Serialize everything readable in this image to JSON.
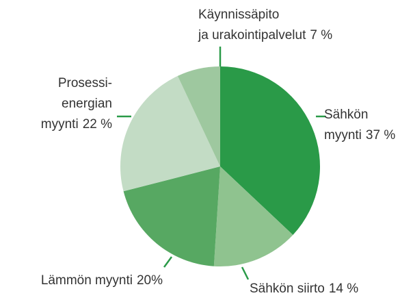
{
  "chart_data": {
    "type": "pie",
    "categories": [
      [
        "Sähkön",
        "myynti"
      ],
      [
        "Sähkön siirto"
      ],
      [
        "Lämmön myynti"
      ],
      [
        "Prosessi-",
        "energian",
        "myynti"
      ],
      [
        "Käynnissäpito",
        "ja urakointipalvelut"
      ]
    ],
    "values": [
      37,
      14,
      20,
      22,
      7
    ],
    "value_labels": [
      "37 %",
      "14 %",
      "20%",
      "22 %",
      "7 %"
    ],
    "colors": [
      "#2a9a48",
      "#8fc38f",
      "#57a862",
      "#c3dcc5",
      "#9ec89f"
    ]
  }
}
